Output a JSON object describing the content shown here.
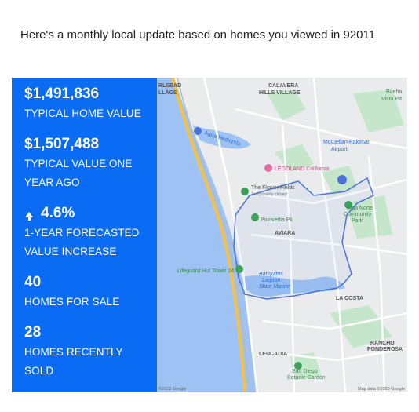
{
  "intro": "Here's a monthly local update based on homes you viewed in 92011",
  "stats": [
    {
      "value": "$1,491,836",
      "label": "TYPICAL HOME VALUE",
      "arrow": false
    },
    {
      "value": "$1,507,488",
      "label": "TYPICAL VALUE ONE YEAR AGO",
      "arrow": false
    },
    {
      "value": "4.6%",
      "label": "1-YEAR FORECASTED VALUE INCREASE",
      "arrow": true
    },
    {
      "value": "40",
      "label": "HOMES FOR SALE",
      "arrow": false
    },
    {
      "value": "28",
      "label": "HOMES RECENTLY SOLD",
      "arrow": false
    }
  ],
  "map": {
    "labels": {
      "carlsbad_village": "RLSBAD\nLLAGE",
      "calavera": "CALAVERA\nHILLS VILLAGE",
      "buena_vista": "Bueha\nVista Pa",
      "agua_hedionda": "Agua Hedionda",
      "legoland": "LEGOLAND California",
      "airport": "McClellan-Palomar\nAirport",
      "flower_fields": "The Flower Fields",
      "flower_fields_sub": "Temporarily closed",
      "poinsettia": "Poinsettia Pk",
      "alga_norte": "Alga Norte\nCommunity\nPark",
      "aviara": "AVIARA",
      "lifeguard": "Lifeguard Hut Tower 24",
      "batiquitos": "Batiquitos\nLagoon\nState Marine",
      "la_costa": "LA COSTA",
      "rancho": "RANCHO\nPONDEROSA",
      "leucadia": "LEUCADIA",
      "botanic": "San Diego\nBotanic Garden",
      "copyright": "©2023 Google",
      "map_data": "Map data ©2023 Google"
    }
  },
  "colors": {
    "panel": "#0a6cf5",
    "water": "#9ec2f3",
    "land": "#e9ebed",
    "park": "#b9dfc0",
    "boundary": "#4a72d8",
    "highway": "#f2c14a"
  }
}
